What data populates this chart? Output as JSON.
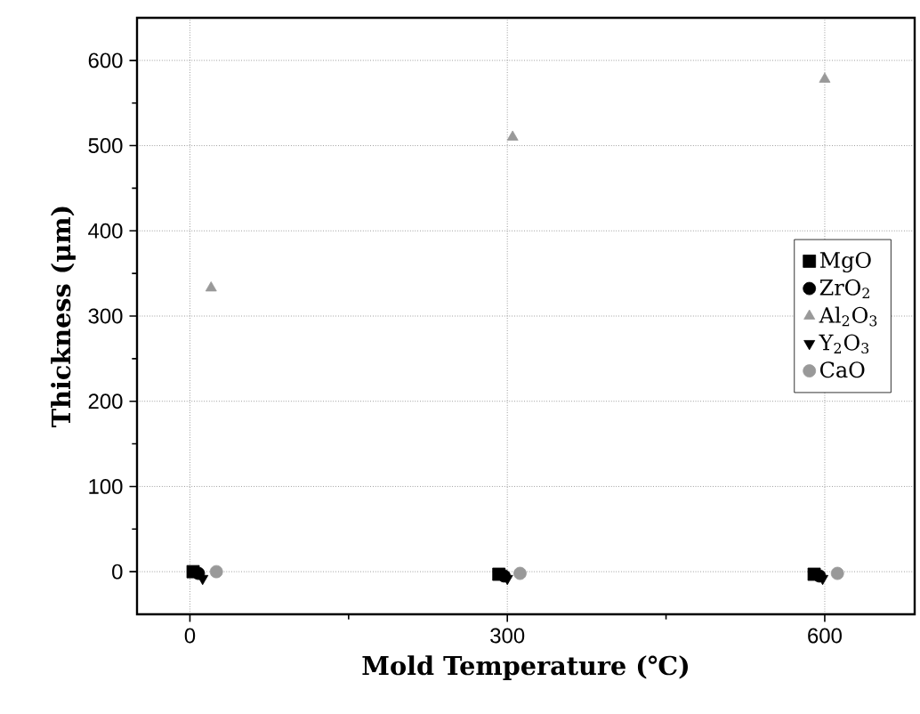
{
  "chart_data": {
    "type": "scatter",
    "xlabel": "Mold Temperature (℃)",
    "ylabel": "Thickness (μm)",
    "xlim": [
      -50,
      685
    ],
    "ylim": [
      -50,
      650
    ],
    "xticks": [
      0,
      300,
      600
    ],
    "yticks": [
      0,
      100,
      200,
      300,
      400,
      500,
      600
    ],
    "grid": true,
    "legend": "right",
    "series": [
      {
        "name": "MgO",
        "color": "#000000",
        "marker": "square",
        "x": [
          3,
          292,
          590
        ],
        "values": [
          0,
          -3,
          -3
        ]
      },
      {
        "name": "ZrO$_{2}$",
        "color": "#000000",
        "marker": "circle",
        "x": [
          8,
          297,
          595
        ],
        "values": [
          -2,
          -5,
          -5
        ]
      },
      {
        "name": "Al$_{2}$O$_{3}$",
        "color": "#999999",
        "marker": "triangle",
        "x": [
          20,
          305,
          600
        ],
        "values": [
          333,
          510,
          578
        ]
      },
      {
        "name": "Y$_{2}$O$_{3}$",
        "color": "#000000",
        "marker": "triangle_down",
        "x": [
          12,
          300,
          598
        ],
        "values": [
          -8,
          -8,
          -8
        ]
      },
      {
        "name": "CaO",
        "color": "#999999",
        "marker": "circle",
        "x": [
          25,
          312,
          612
        ],
        "values": [
          0,
          -2,
          -2
        ]
      }
    ]
  }
}
